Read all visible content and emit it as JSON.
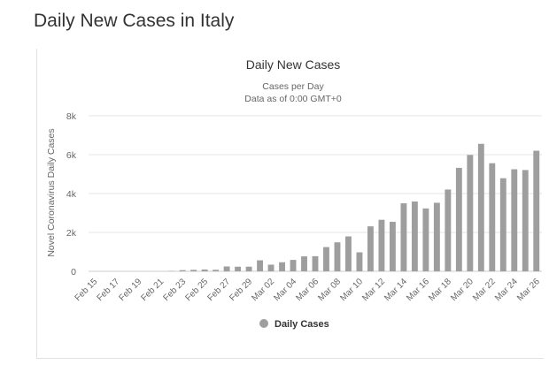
{
  "page": {
    "title": "Daily New Cases in Italy"
  },
  "chart_data": {
    "type": "bar",
    "title": "Daily New Cases",
    "subtitle": [
      "Cases per Day",
      "Data as of 0:00 GMT+0"
    ],
    "ylabel": "Novel Coronavirus Daily Cases",
    "xlabel": "",
    "ylim": [
      0,
      8000
    ],
    "yticks": [
      0,
      2000,
      4000,
      6000,
      8000
    ],
    "ytick_labels": [
      "0",
      "2k",
      "4k",
      "6k",
      "8k"
    ],
    "grid": true,
    "legend": {
      "position": "bottom-center",
      "entries": [
        "Daily Cases"
      ]
    },
    "categories": [
      "Feb 15",
      "Feb 16",
      "Feb 17",
      "Feb 18",
      "Feb 19",
      "Feb 20",
      "Feb 21",
      "Feb 22",
      "Feb 23",
      "Feb 24",
      "Feb 25",
      "Feb 26",
      "Feb 27",
      "Feb 28",
      "Feb 29",
      "Mar 01",
      "Mar 02",
      "Mar 03",
      "Mar 04",
      "Mar 05",
      "Mar 06",
      "Mar 07",
      "Mar 08",
      "Mar 09",
      "Mar 10",
      "Mar 11",
      "Mar 12",
      "Mar 13",
      "Mar 14",
      "Mar 15",
      "Mar 16",
      "Mar 17",
      "Mar 18",
      "Mar 19",
      "Mar 20",
      "Mar 21",
      "Mar 22",
      "Mar 23",
      "Mar 24",
      "Mar 25",
      "Mar 26"
    ],
    "x_tick_labels": [
      "Feb 15",
      "Feb 17",
      "Feb 19",
      "Feb 21",
      "Feb 23",
      "Feb 25",
      "Feb 27",
      "Feb 29",
      "Mar 02",
      "Mar 04",
      "Mar 06",
      "Mar 08",
      "Mar 10",
      "Mar 12",
      "Mar 14",
      "Mar 16",
      "Mar 18",
      "Mar 20",
      "Mar 22",
      "Mar 24",
      "Mar 26"
    ],
    "series": [
      {
        "name": "Daily Cases",
        "color": "#9e9e9e",
        "values": [
          0,
          0,
          0,
          0,
          0,
          0,
          0,
          17,
          59,
          76,
          93,
          78,
          250,
          238,
          240,
          566,
          342,
          466,
          587,
          769,
          778,
          1247,
          1492,
          1797,
          977,
          2313,
          2651,
          2547,
          3497,
          3590,
          3233,
          3526,
          4207,
          5322,
          5986,
          6557,
          5560,
          4789,
          5249,
          5210,
          6203
        ]
      }
    ]
  }
}
